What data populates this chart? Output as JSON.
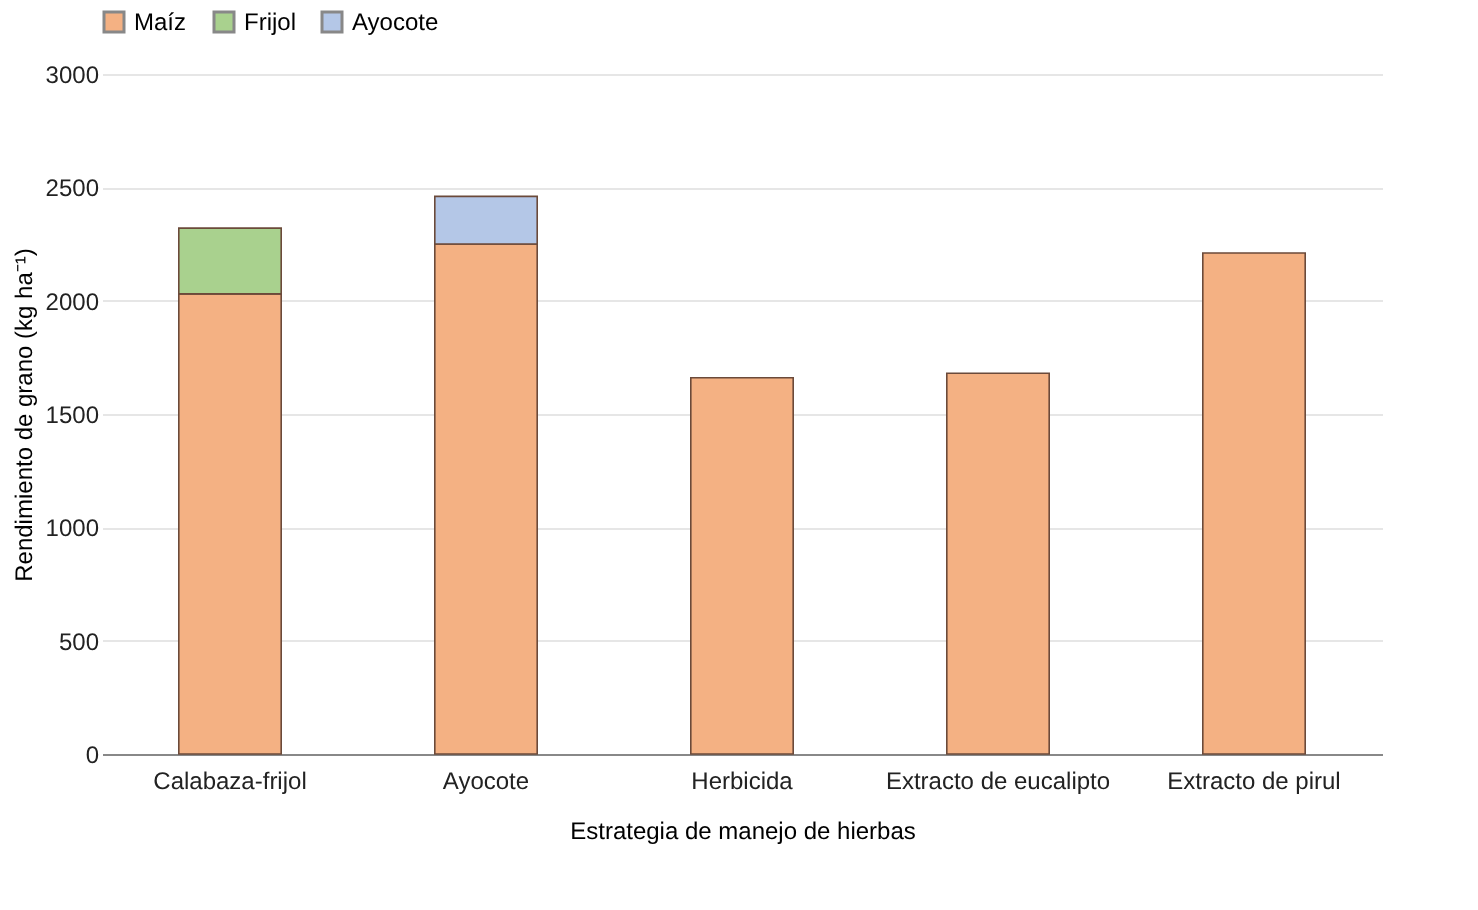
{
  "chart_data": {
    "type": "bar",
    "stacked": true,
    "xlabel": "Estrategia de manejo de hierbas",
    "ylabel": "Rendimiento de grano (kg ha⁻¹)",
    "categories": [
      "Calabaza-frijol",
      "Ayocote",
      "Herbicida",
      "Extracto de eucalipto",
      "Extracto de pirul"
    ],
    "series": [
      {
        "name": "Maíz",
        "color": "#f4b183",
        "values": [
          2030,
          2250,
          1660,
          1680,
          2210
        ]
      },
      {
        "name": "Frijol",
        "color": "#a9d18e",
        "values": [
          290,
          null,
          null,
          null,
          null
        ]
      },
      {
        "name": "Ayocote",
        "color": "#b4c7e7",
        "values": [
          null,
          210,
          null,
          null,
          null
        ]
      }
    ],
    "ylim": [
      0,
      3000
    ],
    "yticks": [
      0,
      500,
      1000,
      1500,
      2000,
      2500,
      3000
    ],
    "grid": "y",
    "legend": "top"
  }
}
